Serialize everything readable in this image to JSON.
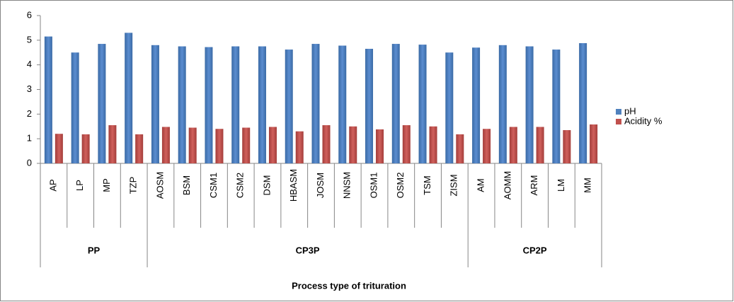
{
  "chart_data": {
    "type": "bar",
    "x_label": "Process type of trituration",
    "category_groups": [
      {
        "name": "PP",
        "categories": [
          "AP",
          "LP",
          "MP",
          "TZP"
        ]
      },
      {
        "name": "CP3P",
        "categories": [
          "AOSM",
          "BSM",
          "CSM1",
          "CSM2",
          "DSM",
          "HBASM",
          "JOSM",
          "NNSM",
          "OSM1",
          "OSM2",
          "TSM",
          "ZISM"
        ]
      },
      {
        "name": "CP2P",
        "categories": [
          "AM",
          "AOMM",
          "ARM",
          "LM",
          "MM"
        ]
      }
    ],
    "series": [
      {
        "name": "pH",
        "color": "#4f81bd",
        "values": [
          5.15,
          4.5,
          4.85,
          5.3,
          4.8,
          4.75,
          4.72,
          4.75,
          4.75,
          4.62,
          4.85,
          4.78,
          4.65,
          4.85,
          4.82,
          4.5,
          4.7,
          4.8,
          4.75,
          4.62,
          4.88
        ]
      },
      {
        "name": "Acidity %",
        "color": "#c0504d",
        "values": [
          1.2,
          1.18,
          1.55,
          1.18,
          1.48,
          1.45,
          1.4,
          1.45,
          1.48,
          1.3,
          1.55,
          1.5,
          1.38,
          1.55,
          1.5,
          1.18,
          1.4,
          1.48,
          1.48,
          1.35,
          1.58
        ]
      }
    ],
    "ylim": [
      0,
      6
    ],
    "yticks": [
      0,
      1,
      2,
      3,
      4,
      5,
      6
    ],
    "grid": false,
    "legend": "right"
  }
}
